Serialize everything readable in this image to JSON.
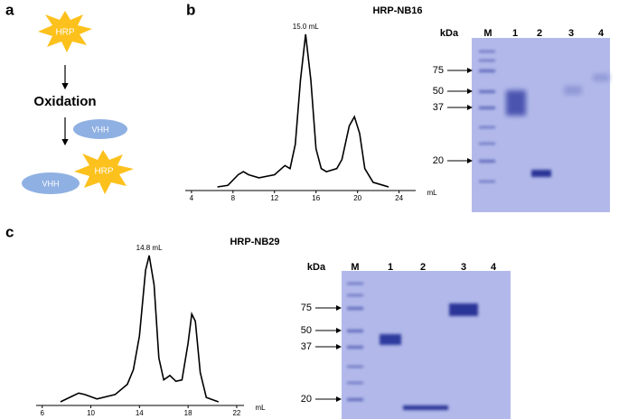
{
  "panel_a": {
    "label": "a",
    "enzyme": "HRP",
    "step": "Oxidation",
    "nanobody": "VHH",
    "conjugate": [
      "VHH",
      "HRP"
    ]
  },
  "panel_b": {
    "label": "b",
    "title": "HRP-NB16",
    "gel": {
      "unit": "kDa",
      "lanes": [
        "M",
        "1",
        "2",
        "3",
        "4"
      ],
      "markers": [
        "75",
        "50",
        "37",
        "20"
      ]
    }
  },
  "panel_c": {
    "label": "c",
    "title": "HRP-NB29",
    "gel": {
      "unit": "kDa",
      "lanes": [
        "M",
        "1",
        "2",
        "3",
        "4"
      ],
      "markers": [
        "75",
        "50",
        "37",
        "20"
      ]
    }
  },
  "chart_data": [
    {
      "type": "line",
      "annotation": "15.0 mL",
      "x_label": "mL",
      "color": "#000000",
      "xlim": [
        3.4,
        25.6
      ],
      "xticks": [
        4,
        8,
        12,
        16,
        20,
        24
      ],
      "ylim": [
        0,
        100
      ],
      "x": [
        6.5,
        7.5,
        8.5,
        9,
        9.5,
        10.5,
        12,
        13,
        13.5,
        14,
        14.5,
        15,
        15.5,
        16,
        16.5,
        17,
        18,
        18.5,
        19.2,
        19.7,
        20.2,
        20.7,
        21.5,
        22.5,
        23
      ],
      "values": [
        0,
        1,
        8,
        10,
        8,
        6,
        8,
        14,
        12,
        28,
        70,
        100,
        70,
        25,
        12,
        10,
        12,
        18,
        40,
        46,
        35,
        12,
        3,
        1,
        0
      ]
    },
    {
      "type": "line",
      "annotation": "14.8 mL",
      "x_label": "mL",
      "color": "#000000",
      "xlim": [
        5.5,
        22.6
      ],
      "xticks": [
        6,
        10,
        14,
        18,
        22
      ],
      "ylim": [
        0,
        100
      ],
      "x": [
        7.5,
        8.5,
        9,
        9.5,
        10.5,
        12,
        13,
        13.5,
        14,
        14.5,
        14.8,
        15.2,
        15.6,
        16,
        16.5,
        17,
        17.5,
        18,
        18.3,
        18.6,
        19,
        19.5,
        20.5
      ],
      "values": [
        0,
        4,
        6,
        5,
        2,
        5,
        12,
        22,
        45,
        90,
        100,
        80,
        30,
        15,
        18,
        14,
        15,
        40,
        60,
        55,
        20,
        3,
        0
      ]
    }
  ]
}
